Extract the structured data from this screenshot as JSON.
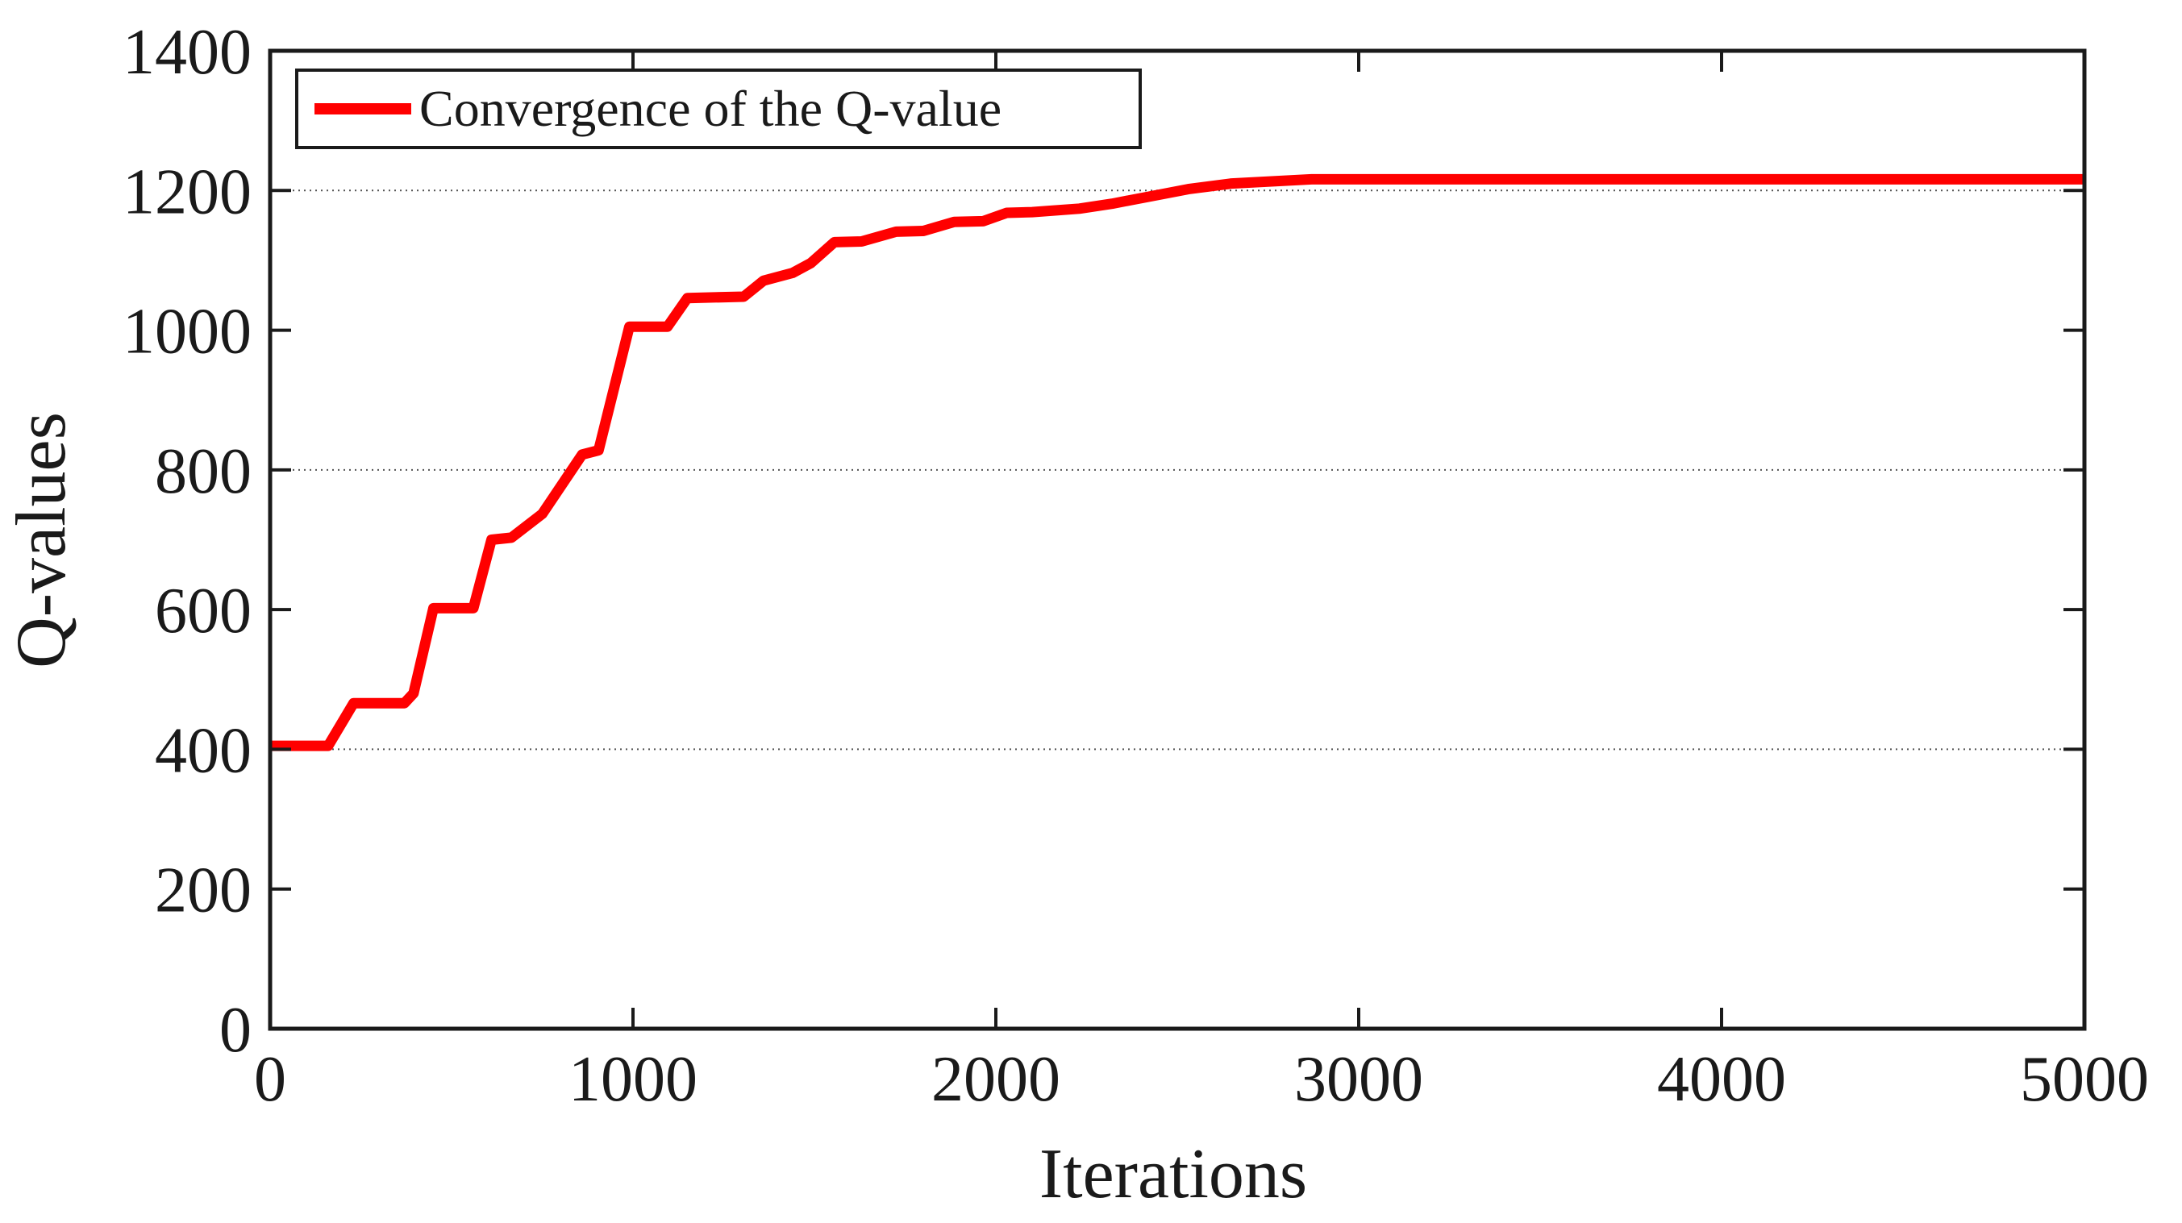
{
  "figure": {
    "xlabel": "Iterations",
    "ylabel": "Q-values",
    "legend_label": "Convergence of the Q-value"
  },
  "colors": {
    "line": "#ff0000",
    "axis": "#1a1a1a",
    "grid": "#1a1a1a",
    "background": "#ffffff"
  },
  "chart_data": {
    "type": "line",
    "title": "",
    "xlabel": "Iterations",
    "ylabel": "Q-values",
    "xlim": [
      0,
      5000
    ],
    "ylim": [
      0,
      1400
    ],
    "x_ticks": [
      0,
      1000,
      2000,
      3000,
      4000,
      5000
    ],
    "y_ticks": [
      0,
      200,
      400,
      600,
      800,
      1000,
      1200,
      1400
    ],
    "gridlines_y": [
      400,
      800,
      1200
    ],
    "grid_style": "dotted",
    "legend_position": "top-left",
    "converged_value": 1216,
    "series": [
      {
        "name": "Convergence of the Q-value",
        "color": "#ff0000",
        "x": [
          0,
          160,
          230,
          370,
          395,
          450,
          560,
          610,
          665,
          750,
          860,
          905,
          990,
          1095,
          1150,
          1305,
          1360,
          1440,
          1490,
          1555,
          1630,
          1725,
          1800,
          1885,
          1965,
          2030,
          2100,
          2230,
          2320,
          2430,
          2530,
          2650,
          2870,
          5000
        ],
        "y": [
          405,
          405,
          466,
          466,
          480,
          602,
          602,
          700,
          703,
          737,
          822,
          828,
          1005,
          1005,
          1046,
          1048,
          1071,
          1082,
          1096,
          1126,
          1127,
          1141,
          1142,
          1155,
          1156,
          1168,
          1169,
          1174,
          1181,
          1192,
          1202,
          1210,
          1216,
          1216
        ]
      }
    ]
  }
}
